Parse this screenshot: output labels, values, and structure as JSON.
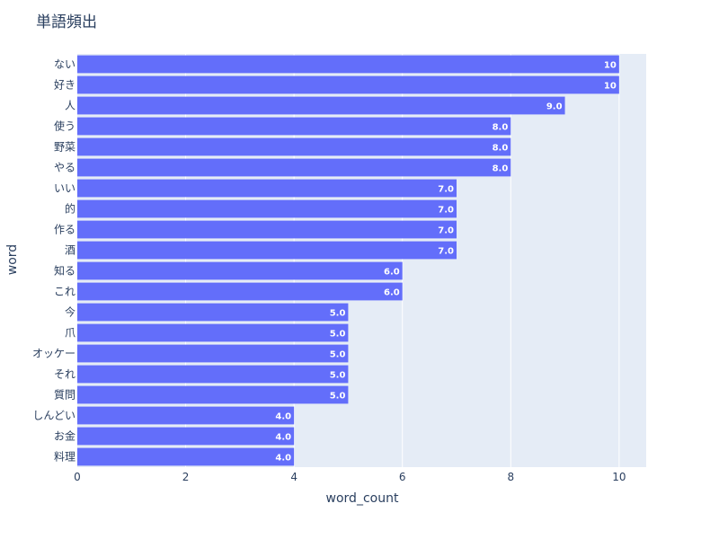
{
  "chart_data": {
    "type": "bar",
    "orientation": "horizontal",
    "title": "単語頻出",
    "xlabel": "word_count",
    "ylabel": "word",
    "categories": [
      "ない",
      "好き",
      "人",
      "使う",
      "野菜",
      "やる",
      "いい",
      "的",
      "作る",
      "酒",
      "知る",
      "これ",
      "今",
      "爪",
      "オッケー",
      "それ",
      "質問",
      "しんどい",
      "お金",
      "料理"
    ],
    "values": [
      10,
      10,
      9,
      8,
      8,
      8,
      7,
      7,
      7,
      7,
      6,
      6,
      5,
      5,
      5,
      5,
      5,
      4,
      4,
      4
    ],
    "value_labels": [
      "10",
      "10",
      "9.0",
      "8.0",
      "8.0",
      "8.0",
      "7.0",
      "7.0",
      "7.0",
      "7.0",
      "6.0",
      "6.0",
      "5.0",
      "5.0",
      "5.0",
      "5.0",
      "5.0",
      "4.0",
      "4.0",
      "4.0"
    ],
    "xlim": [
      0,
      10.5
    ],
    "xticks": [
      0,
      2,
      4,
      6,
      8,
      10
    ],
    "grid": true,
    "colors": {
      "bar": "#636efa",
      "plot_bg": "#e5ecf6",
      "grid": "#ffffff",
      "text": "#2a3f5f"
    }
  }
}
